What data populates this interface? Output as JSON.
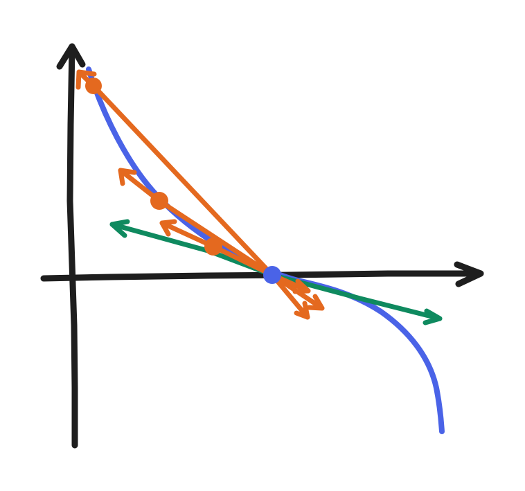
{
  "diagram": {
    "description_free": true,
    "colors": {
      "background": "#ffffff",
      "axes": "#1e1e1e",
      "curve": "#4a63e7",
      "secants": "#e4691f",
      "tangent": "#0f8a5f",
      "target_point": "#4a63e7",
      "secant_points": "#e4691f"
    },
    "elements": {
      "axes": [
        "x-axis",
        "y-axis"
      ],
      "curve": "decreasing-curve",
      "target_point": "tangent-point",
      "secant_points": [
        "secant-point-1",
        "secant-point-2",
        "secant-point-3"
      ],
      "secant_lines": [
        "secant-line-1",
        "secant-line-2",
        "secant-line-3"
      ],
      "tangent_line": "tangent-line"
    },
    "arrow_icons": [
      "arrowhead-icon"
    ]
  }
}
